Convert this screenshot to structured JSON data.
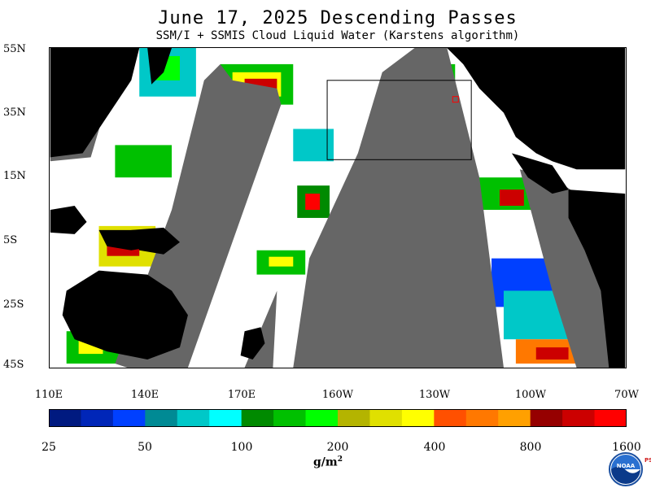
{
  "header": {
    "title": "June 17, 2025  Descending Passes",
    "subtitle": "SSM/I + SSMIS Cloud Liquid Water (Karstens algorithm)"
  },
  "map": {
    "lat_labels": [
      "55N",
      "35N",
      "15N",
      "5S",
      "25S",
      "45S"
    ],
    "lon_labels": [
      "110E",
      "140E",
      "170E",
      "160W",
      "130W",
      "100W",
      "70W"
    ],
    "colors": {
      "land": "#000000",
      "no_data": "#666666",
      "clear": "#ffffff",
      "box": "#000000",
      "marker": "#ff0000"
    }
  },
  "colorbar": {
    "labels": [
      "25",
      "50",
      "100",
      "200",
      "400",
      "800",
      "1600"
    ],
    "colors": [
      "#001a80",
      "#0026b8",
      "#0040ff",
      "#008a94",
      "#00c8c8",
      "#00ffff",
      "#008a00",
      "#00c000",
      "#00ff00",
      "#b4b400",
      "#e0e000",
      "#ffff00",
      "#ff5000",
      "#ff7800",
      "#ffa000",
      "#960000",
      "#cc0000",
      "#ff0000"
    ],
    "units": "g/m",
    "units_sup": "2"
  },
  "logo": {
    "text": "NOAA",
    "side_text": "PSL",
    "icon": "noaa-logo-icon"
  }
}
